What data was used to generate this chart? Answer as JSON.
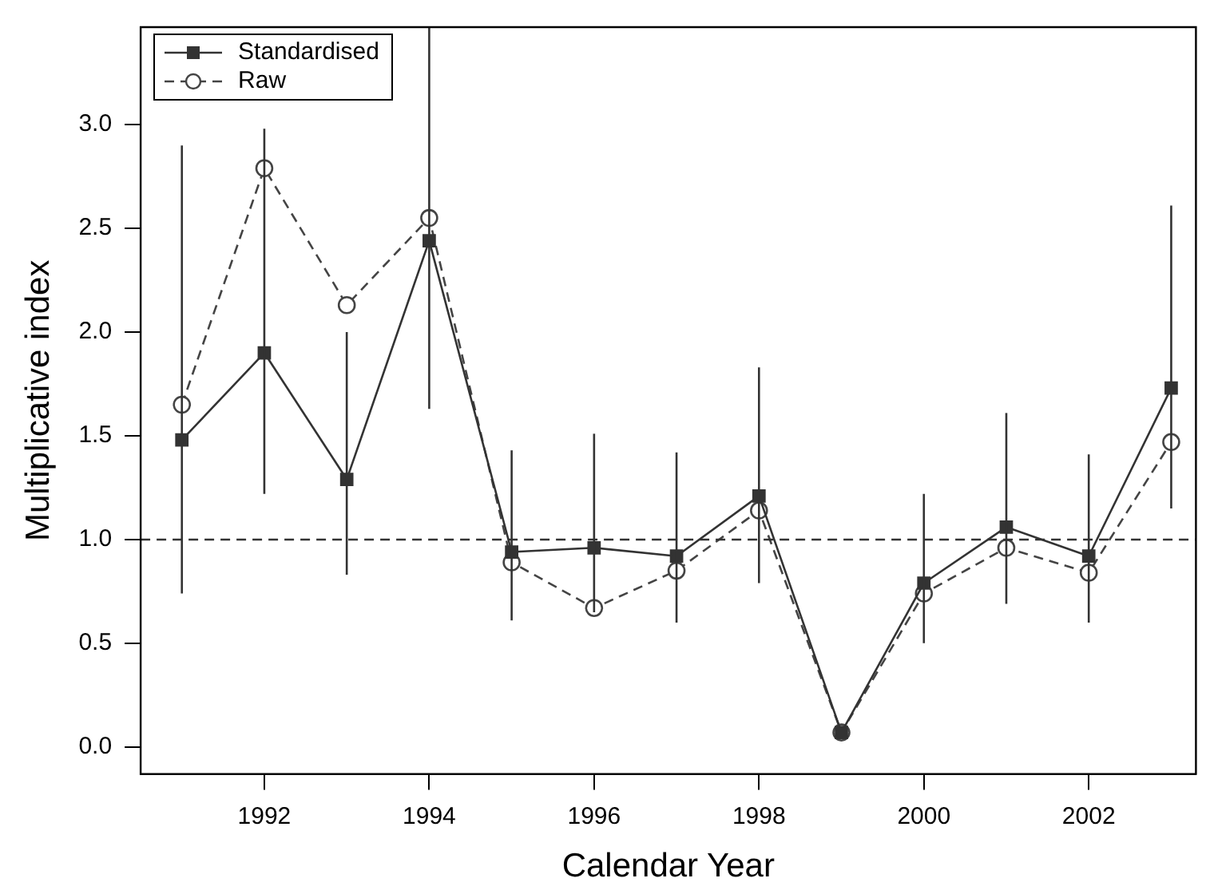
{
  "chart_data": {
    "type": "line",
    "xlabel": "Calendar Year",
    "ylabel": "Multiplicative index",
    "x": [
      1991,
      1992,
      1993,
      1994,
      1995,
      1996,
      1997,
      1998,
      1999,
      2000,
      2001,
      2002,
      2003
    ],
    "series": [
      {
        "name": "Standardised",
        "color": "#333333",
        "marker": "square",
        "line_style": "solid",
        "values": [
          1.48,
          1.9,
          1.29,
          2.44,
          0.94,
          0.96,
          0.92,
          1.21,
          0.07,
          0.79,
          1.06,
          0.92,
          1.73
        ],
        "errors": [
          [
            0.74,
            2.9
          ],
          [
            1.22,
            2.98
          ],
          [
            0.83,
            2.0
          ],
          [
            1.63,
            3.47
          ],
          [
            0.61,
            1.43
          ],
          [
            0.65,
            1.51
          ],
          [
            0.6,
            1.42
          ],
          [
            0.79,
            1.83
          ],
          null,
          [
            0.5,
            1.22
          ],
          [
            0.69,
            1.61
          ],
          [
            0.6,
            1.41
          ],
          [
            1.15,
            2.61
          ]
        ]
      },
      {
        "name": "Raw",
        "color": "#444444",
        "marker": "circle",
        "line_style": "dashed",
        "values": [
          1.65,
          2.79,
          2.13,
          2.55,
          0.89,
          0.67,
          0.85,
          1.14,
          0.07,
          0.74,
          0.96,
          0.84,
          1.47
        ]
      }
    ],
    "xlim": [
      1990.5,
      2003.3
    ],
    "xticks": [
      1992,
      1994,
      1996,
      1998,
      2000,
      2002
    ],
    "ylim": [
      -0.13,
      3.47
    ],
    "yticks": [
      {
        "value": 0,
        "label": "0.0"
      },
      {
        "value": 0.5,
        "label": "0.5"
      },
      {
        "value": 1,
        "label": "1.0"
      },
      {
        "value": 1.5,
        "label": "1.5"
      },
      {
        "value": 2,
        "label": "2.0"
      },
      {
        "value": 2.5,
        "label": "2.5"
      },
      {
        "value": 3,
        "label": "3.0"
      }
    ],
    "ref_lines": [
      {
        "axis": "y",
        "value": 1,
        "line_style": "dashed",
        "color": "#333333"
      }
    ],
    "legend": "top left"
  }
}
